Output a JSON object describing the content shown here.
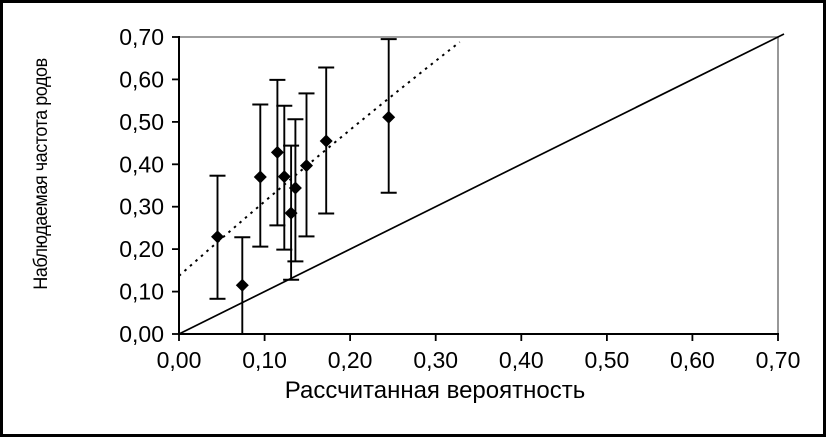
{
  "page": {
    "background": "#ffffff",
    "border_color": "#000000"
  },
  "chart_data": {
    "type": "scatter",
    "title": "",
    "xlabel": "Рассчитанная вероятность",
    "ylabel": "Наблюдаемая частота родов",
    "xlim": [
      0,
      0.7
    ],
    "ylim": [
      0,
      0.7
    ],
    "grid": false,
    "legend": false,
    "decimal_separator": ",",
    "tick_values": [
      0,
      0.1,
      0.2,
      0.3,
      0.4,
      0.5,
      0.6,
      0.7
    ],
    "tick_labels": [
      "0,00",
      "0,10",
      "0,20",
      "0,30",
      "0,40",
      "0,50",
      "0,60",
      "0,70"
    ],
    "points": [
      {
        "x": 0.045,
        "y": 0.229,
        "ci_low": 0.083,
        "ci_high": 0.373
      },
      {
        "x": 0.074,
        "y": 0.115,
        "ci_low": 0.0,
        "ci_high": 0.228
      },
      {
        "x": 0.095,
        "y": 0.37,
        "ci_low": 0.206,
        "ci_high": 0.541
      },
      {
        "x": 0.115,
        "y": 0.428,
        "ci_low": 0.256,
        "ci_high": 0.599
      },
      {
        "x": 0.123,
        "y": 0.371,
        "ci_low": 0.199,
        "ci_high": 0.538
      },
      {
        "x": 0.131,
        "y": 0.285,
        "ci_low": 0.128,
        "ci_high": 0.444
      },
      {
        "x": 0.136,
        "y": 0.344,
        "ci_low": 0.171,
        "ci_high": 0.506
      },
      {
        "x": 0.149,
        "y": 0.397,
        "ci_low": 0.23,
        "ci_high": 0.567
      },
      {
        "x": 0.172,
        "y": 0.455,
        "ci_low": 0.284,
        "ci_high": 0.628
      },
      {
        "x": 0.245,
        "y": 0.511,
        "ci_low": 0.333,
        "ci_high": 0.695
      }
    ],
    "marker": "diamond",
    "identity_line": {
      "style": "solid",
      "from": [
        0,
        0
      ],
      "to": [
        0.707,
        0.707
      ]
    },
    "trend_line": {
      "style": "dotted",
      "shape": "quadratic",
      "p0": [
        0.0,
        0.137
      ],
      "p1": [
        0.164,
        0.43
      ],
      "p2": [
        0.328,
        0.688
      ]
    },
    "colors": {
      "marker": "#000000",
      "error_bar": "#000000",
      "identity": "#000000",
      "trend": "#000000",
      "axis": "#000000",
      "frame": "#7f7f7f",
      "plot_background": "#ffffff"
    }
  }
}
